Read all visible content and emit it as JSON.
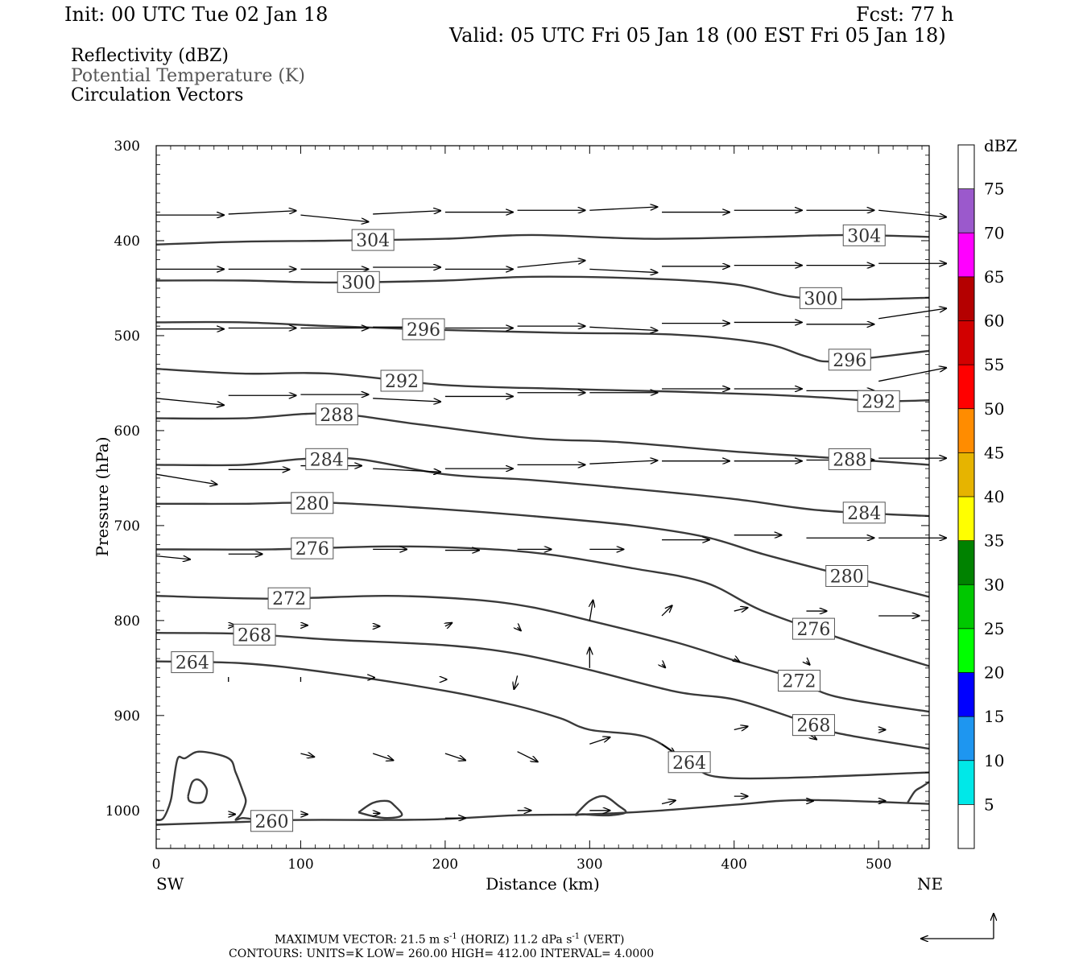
{
  "header": {
    "init": "Init: 00 UTC Tue 02 Jan 18",
    "fcst": "Fcst:   77 h",
    "valid": "Valid: 05 UTC Fri 05 Jan 18 (00 EST Fri 05 Jan 18)"
  },
  "legend": {
    "line1": "Reflectivity (dBZ)",
    "line2": "Potential Temperature (K)",
    "line3": "Circulation Vectors"
  },
  "chart_data": {
    "type": "cross-section",
    "xlabel": "Distance (km)",
    "ylabel": "Pressure (hPa)",
    "xlim": [
      0,
      535
    ],
    "ylim": [
      1040,
      300
    ],
    "x_ticks": [
      0,
      100,
      200,
      300,
      400,
      500
    ],
    "y_ticks": [
      300,
      400,
      500,
      600,
      700,
      800,
      900,
      1000
    ],
    "x_end_labels": {
      "left": "SW",
      "right": "NE"
    },
    "contours": [
      {
        "label": "304",
        "x": [
          0,
          60,
          120,
          200,
          260,
          340,
          420,
          480,
          535
        ],
        "p": [
          404,
          401,
          400,
          398,
          394,
          398,
          396,
          394,
          396
        ]
      },
      {
        "label": "300",
        "x": [
          0,
          60,
          120,
          200,
          260,
          340,
          400,
          440,
          480,
          535
        ],
        "p": [
          442,
          442,
          444,
          442,
          438,
          440,
          446,
          459,
          462,
          460
        ]
      },
      {
        "label": "296",
        "x": [
          0,
          60,
          120,
          200,
          280,
          360,
          420,
          450,
          470,
          535
        ],
        "p": [
          486,
          486,
          490,
          494,
          497,
          499,
          508,
          522,
          527,
          516
        ]
      },
      {
        "label": "292",
        "x": [
          0,
          60,
          120,
          200,
          280,
          360,
          420,
          460,
          500,
          535
        ],
        "p": [
          535,
          540,
          540,
          552,
          556,
          559,
          562,
          565,
          569,
          568
        ]
      },
      {
        "label": "288",
        "x": [
          0,
          60,
          120,
          180,
          260,
          320,
          400,
          460,
          535
        ],
        "p": [
          587,
          587,
          582,
          593,
          608,
          612,
          622,
          628,
          636
        ]
      },
      {
        "label": "284",
        "x": [
          0,
          60,
          100,
          140,
          200,
          260,
          320,
          400,
          460,
          535
        ],
        "p": [
          636,
          636,
          630,
          630,
          646,
          652,
          660,
          672,
          684,
          690
        ]
      },
      {
        "label": "280",
        "x": [
          0,
          60,
          120,
          200,
          260,
          330,
          380,
          420,
          470,
          535
        ],
        "p": [
          677,
          677,
          676,
          683,
          690,
          700,
          712,
          730,
          750,
          775
        ]
      },
      {
        "label": "276",
        "x": [
          0,
          80,
          160,
          220,
          270,
          330,
          380,
          420,
          480,
          535
        ],
        "p": [
          725,
          725,
          722,
          724,
          730,
          745,
          760,
          790,
          822,
          848
        ]
      },
      {
        "label": "272",
        "x": [
          0,
          80,
          160,
          220,
          260,
          300,
          360,
          400,
          440,
          470,
          535
        ],
        "p": [
          774,
          777,
          774,
          778,
          786,
          800,
          823,
          842,
          860,
          880,
          896
        ]
      },
      {
        "label": "268",
        "x": [
          0,
          60,
          120,
          200,
          250,
          300,
          360,
          400,
          440,
          470,
          535
        ],
        "p": [
          813,
          814,
          820,
          826,
          835,
          852,
          875,
          883,
          902,
          918,
          935
        ]
      },
      {
        "label": "264",
        "x": [
          0,
          60,
          120,
          200,
          250,
          280,
          300,
          340,
          370,
          400,
          535
        ],
        "p": [
          843,
          845,
          855,
          874,
          890,
          903,
          915,
          923,
          950,
          966,
          960
        ]
      },
      {
        "label": "260",
        "x": [
          0,
          60,
          100,
          160,
          200,
          250,
          300,
          350,
          400,
          450,
          535
        ],
        "p": [
          1015,
          1012,
          1010,
          1010,
          1009,
          1005,
          1004,
          1000,
          994,
          989,
          993
        ]
      }
    ],
    "vectors": [
      {
        "x": 0,
        "p": 373,
        "u": 1.0,
        "v": 0
      },
      {
        "x": 50,
        "p": 372,
        "u": 1.0,
        "v": 0.05
      },
      {
        "x": 100,
        "p": 373,
        "u": 1.0,
        "v": -0.1
      },
      {
        "x": 150,
        "p": 372,
        "u": 1.0,
        "v": 0.05
      },
      {
        "x": 200,
        "p": 370,
        "u": 1.0,
        "v": 0
      },
      {
        "x": 250,
        "p": 368,
        "u": 1.0,
        "v": 0
      },
      {
        "x": 300,
        "p": 368,
        "u": 1.0,
        "v": 0.05
      },
      {
        "x": 350,
        "p": 370,
        "u": 1.0,
        "v": 0
      },
      {
        "x": 400,
        "p": 368,
        "u": 1.0,
        "v": 0
      },
      {
        "x": 450,
        "p": 368,
        "u": 1.0,
        "v": 0
      },
      {
        "x": 500,
        "p": 368,
        "u": 1.0,
        "v": -0.1
      },
      {
        "x": 0,
        "p": 430,
        "u": 1.0,
        "v": 0
      },
      {
        "x": 50,
        "p": 430,
        "u": 1.0,
        "v": 0
      },
      {
        "x": 100,
        "p": 430,
        "u": 1.0,
        "v": 0
      },
      {
        "x": 150,
        "p": 428,
        "u": 1.0,
        "v": 0
      },
      {
        "x": 200,
        "p": 430,
        "u": 1.0,
        "v": 0
      },
      {
        "x": 250,
        "p": 428,
        "u": 1.0,
        "v": 0.1
      },
      {
        "x": 300,
        "p": 430,
        "u": 1.0,
        "v": -0.05
      },
      {
        "x": 350,
        "p": 427,
        "u": 1.0,
        "v": 0
      },
      {
        "x": 400,
        "p": 426,
        "u": 1.0,
        "v": 0
      },
      {
        "x": 450,
        "p": 426,
        "u": 1.0,
        "v": 0
      },
      {
        "x": 500,
        "p": 424,
        "u": 1.0,
        "v": 0
      },
      {
        "x": 0,
        "p": 493,
        "u": 1.0,
        "v": 0
      },
      {
        "x": 50,
        "p": 492,
        "u": 1.0,
        "v": 0
      },
      {
        "x": 100,
        "p": 492,
        "u": 1.0,
        "v": 0
      },
      {
        "x": 150,
        "p": 491,
        "u": 1.0,
        "v": 0
      },
      {
        "x": 200,
        "p": 492,
        "u": 1.0,
        "v": 0
      },
      {
        "x": 250,
        "p": 490,
        "u": 1.0,
        "v": 0
      },
      {
        "x": 300,
        "p": 491,
        "u": 1.0,
        "v": -0.05
      },
      {
        "x": 350,
        "p": 487,
        "u": 1.0,
        "v": 0
      },
      {
        "x": 400,
        "p": 486,
        "u": 1.0,
        "v": 0
      },
      {
        "x": 450,
        "p": 488,
        "u": 1.0,
        "v": 0
      },
      {
        "x": 500,
        "p": 482,
        "u": 1.0,
        "v": 0.15
      },
      {
        "x": 0,
        "p": 566,
        "u": 1.0,
        "v": -0.1
      },
      {
        "x": 50,
        "p": 563,
        "u": 1.0,
        "v": 0
      },
      {
        "x": 100,
        "p": 562,
        "u": 1.0,
        "v": 0
      },
      {
        "x": 150,
        "p": 566,
        "u": 1.0,
        "v": -0.05
      },
      {
        "x": 200,
        "p": 564,
        "u": 1.0,
        "v": 0
      },
      {
        "x": 250,
        "p": 560,
        "u": 1.0,
        "v": 0
      },
      {
        "x": 300,
        "p": 560,
        "u": 1.0,
        "v": 0
      },
      {
        "x": 350,
        "p": 556,
        "u": 1.0,
        "v": 0
      },
      {
        "x": 400,
        "p": 556,
        "u": 1.0,
        "v": 0
      },
      {
        "x": 450,
        "p": 558,
        "u": 1.0,
        "v": 0
      },
      {
        "x": 500,
        "p": 548,
        "u": 1.0,
        "v": 0.2
      },
      {
        "x": 0,
        "p": 646,
        "u": 0.9,
        "v": -0.15
      },
      {
        "x": 50,
        "p": 641,
        "u": 0.9,
        "v": 0
      },
      {
        "x": 100,
        "p": 637,
        "u": 0.9,
        "v": 0
      },
      {
        "x": 150,
        "p": 640,
        "u": 1.0,
        "v": -0.05
      },
      {
        "x": 200,
        "p": 640,
        "u": 1.0,
        "v": 0
      },
      {
        "x": 250,
        "p": 636,
        "u": 1.0,
        "v": 0
      },
      {
        "x": 300,
        "p": 635,
        "u": 1.0,
        "v": 0.05
      },
      {
        "x": 350,
        "p": 632,
        "u": 1.0,
        "v": 0
      },
      {
        "x": 400,
        "p": 632,
        "u": 1.0,
        "v": 0
      },
      {
        "x": 450,
        "p": 631,
        "u": 1.0,
        "v": 0
      },
      {
        "x": 500,
        "p": 629,
        "u": 1.0,
        "v": 0
      },
      {
        "x": 0,
        "p": 732,
        "u": 0.5,
        "v": -0.05
      },
      {
        "x": 50,
        "p": 730,
        "u": 0.5,
        "v": 0
      },
      {
        "x": 150,
        "p": 725,
        "u": 0.5,
        "v": 0
      },
      {
        "x": 200,
        "p": 726,
        "u": 0.5,
        "v": 0
      },
      {
        "x": 250,
        "p": 725,
        "u": 0.5,
        "v": 0
      },
      {
        "x": 300,
        "p": 725,
        "u": 0.5,
        "v": 0
      },
      {
        "x": 350,
        "p": 715,
        "u": 0.7,
        "v": 0
      },
      {
        "x": 400,
        "p": 710,
        "u": 0.7,
        "v": 0
      },
      {
        "x": 450,
        "p": 713,
        "u": 1.0,
        "v": 0
      },
      {
        "x": 500,
        "p": 713,
        "u": 1.0,
        "v": 0
      },
      {
        "x": 50,
        "p": 805,
        "u": 0.1,
        "v": 0
      },
      {
        "x": 100,
        "p": 805,
        "u": 0.1,
        "v": 0
      },
      {
        "x": 150,
        "p": 806,
        "u": 0.1,
        "v": 0
      },
      {
        "x": 200,
        "p": 806,
        "u": 0.1,
        "v": 0.05
      },
      {
        "x": 250,
        "p": 807,
        "u": 0.05,
        "v": -0.05
      },
      {
        "x": 300,
        "p": 800,
        "u": 0.05,
        "v": 0.3
      },
      {
        "x": 350,
        "p": 795,
        "u": 0.15,
        "v": 0.15
      },
      {
        "x": 400,
        "p": 790,
        "u": 0.2,
        "v": 0.05
      },
      {
        "x": 450,
        "p": 790,
        "u": 0.3,
        "v": 0
      },
      {
        "x": 500,
        "p": 795,
        "u": 0.6,
        "v": 0
      },
      {
        "x": 50,
        "p": 862,
        "u": 0.0,
        "v": 0
      },
      {
        "x": 100,
        "p": 862,
        "u": 0.0,
        "v": 0
      },
      {
        "x": 150,
        "p": 860,
        "u": 0.02,
        "v": 0
      },
      {
        "x": 200,
        "p": 862,
        "u": 0.02,
        "v": 0
      },
      {
        "x": 250,
        "p": 858,
        "u": -0.05,
        "v": -0.2
      },
      {
        "x": 300,
        "p": 850,
        "u": 0.0,
        "v": 0.3
      },
      {
        "x": 350,
        "p": 846,
        "u": 0.05,
        "v": -0.05
      },
      {
        "x": 400,
        "p": 840,
        "u": 0.08,
        "v": -0.05
      },
      {
        "x": 450,
        "p": 843,
        "u": 0.05,
        "v": -0.05
      },
      {
        "x": 100,
        "p": 940,
        "u": 0.2,
        "v": -0.05
      },
      {
        "x": 150,
        "p": 940,
        "u": 0.3,
        "v": -0.1
      },
      {
        "x": 200,
        "p": 940,
        "u": 0.3,
        "v": -0.1
      },
      {
        "x": 250,
        "p": 938,
        "u": 0.3,
        "v": -0.15
      },
      {
        "x": 300,
        "p": 930,
        "u": 0.3,
        "v": 0.1
      },
      {
        "x": 350,
        "p": 930,
        "u": 0.2,
        "v": -0.15
      },
      {
        "x": 400,
        "p": 915,
        "u": 0.2,
        "v": 0.05
      },
      {
        "x": 450,
        "p": 918,
        "u": 0.15,
        "v": -0.1
      },
      {
        "x": 500,
        "p": 915,
        "u": 0.1,
        "v": 0
      },
      {
        "x": 50,
        "p": 1004,
        "u": 0.1,
        "v": 0
      },
      {
        "x": 100,
        "p": 1004,
        "u": 0.1,
        "v": 0
      },
      {
        "x": 150,
        "p": 1003,
        "u": 0.1,
        "v": 0
      },
      {
        "x": 200,
        "p": 1008,
        "u": 0.3,
        "v": 0
      },
      {
        "x": 250,
        "p": 1000,
        "u": 0.2,
        "v": 0
      },
      {
        "x": 300,
        "p": 1000,
        "u": 0.3,
        "v": 0
      },
      {
        "x": 350,
        "p": 993,
        "u": 0.2,
        "v": 0.05
      },
      {
        "x": 400,
        "p": 985,
        "u": 0.2,
        "v": 0
      },
      {
        "x": 450,
        "p": 990,
        "u": 0.1,
        "v": 0
      },
      {
        "x": 500,
        "p": 990,
        "u": 0.1,
        "v": 0
      }
    ],
    "reflectivity_contours": [
      {
        "x": [
          0,
          5,
          10,
          12,
          15,
          20,
          30,
          50,
          55,
          60,
          62,
          60,
          58,
          55,
          60,
          70,
          80
        ],
        "p": [
          1010,
          1008,
          990,
          970,
          945,
          945,
          938,
          945,
          960,
          980,
          990,
          1000,
          1005,
          1010,
          1008,
          1010,
          1012
        ]
      },
      {
        "x": [
          22,
          25,
          30,
          35,
          33,
          28,
          23,
          22
        ],
        "p": [
          985,
          970,
          968,
          978,
          990,
          992,
          990,
          985
        ]
      },
      {
        "x": [
          140,
          150,
          160,
          165,
          170,
          160,
          150,
          140
        ],
        "p": [
          1002,
          992,
          990,
          995,
          1005,
          1008,
          1006,
          1002
        ]
      },
      {
        "x": [
          290,
          300,
          310,
          320,
          325,
          315,
          305,
          295,
          290
        ],
        "p": [
          1005,
          990,
          985,
          995,
          1002,
          1005,
          1005,
          1004,
          1005
        ]
      },
      {
        "x": [
          520,
          525,
          530,
          535
        ],
        "p": [
          992,
          980,
          975,
          970
        ]
      }
    ],
    "colorbar": {
      "title": "dBZ",
      "levels": [
        "5",
        "10",
        "15",
        "20",
        "25",
        "30",
        "35",
        "40",
        "45",
        "50",
        "55",
        "60",
        "65",
        "70",
        "75"
      ],
      "colors": [
        "#ffffff",
        "#00e8e8",
        "#1e96f0",
        "#0000ff",
        "#00ff00",
        "#00c800",
        "#008200",
        "#ffff00",
        "#e6b400",
        "#ff8c00",
        "#ff0000",
        "#d20000",
        "#b40000",
        "#ff00ff",
        "#9b59cc",
        "#ffffff"
      ]
    }
  },
  "footer": {
    "maxvec_prefix": "MAXIMUM VECTOR:  21.5 m s",
    "maxvec_mid": " (HORIZ)          11.2 dPa s",
    "maxvec_suffix": " (VERT)",
    "sup": "-1",
    "contours": "CONTOURS:  UNITS=K  LOW=   260.00       HIGH=   412.00       INTERVAL=     4.0000"
  }
}
